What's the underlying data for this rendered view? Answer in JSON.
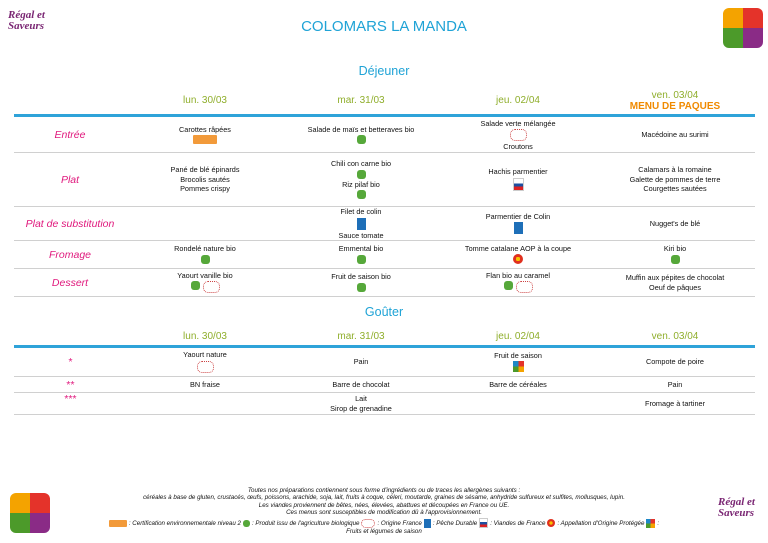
{
  "header": {
    "logo": [
      "Régal et",
      "Saveurs"
    ],
    "title": "COLOMARS LA MANDA"
  },
  "lunch": {
    "title": "Déjeuner",
    "days": [
      "lun. 30/03",
      "mar. 31/03",
      "jeu. 02/04",
      "ven. 03/04"
    ],
    "special": "MENU DE PAQUES",
    "rows": [
      {
        "label": "Entrée",
        "cells": [
          [
            "Carottes râpées"
          ],
          [
            "Salade de maïs et betteraves bio"
          ],
          [
            "Salade verte mélangée",
            "Croutons"
          ],
          [
            "Macédoine au surimi"
          ]
        ]
      },
      {
        "label": "Plat",
        "cells": [
          [
            "Pané de blé épinards",
            "Brocolis sautés",
            "Pommes crispy"
          ],
          [
            "Chili con carne bio",
            "Riz pilaf bio"
          ],
          [
            "Hachis parmentier"
          ],
          [
            "Calamars à la romaine",
            "Galette de pommes de terre",
            "Courgettes sautées"
          ]
        ]
      },
      {
        "label": "Plat de substitution",
        "cells": [
          [],
          [
            "Filet de colin",
            "Sauce tomate"
          ],
          [
            "Parmentier de Colin"
          ],
          [
            "Nugget's de blé"
          ]
        ]
      },
      {
        "label": "Fromage",
        "cells": [
          [
            "Rondelé nature bio"
          ],
          [
            "Emmental bio"
          ],
          [
            "Tomme catalane AOP à la coupe"
          ],
          [
            "Kiri bio"
          ]
        ]
      },
      {
        "label": "Dessert",
        "cells": [
          [
            "Yaourt vanille bio"
          ],
          [
            "Fruit de saison bio"
          ],
          [
            "Flan bio au caramel"
          ],
          [
            "Muffin aux pépites de chocolat",
            "Oeuf de pâques"
          ]
        ]
      }
    ]
  },
  "snack": {
    "title": "Goûter",
    "days": [
      "lun. 30/03",
      "mar. 31/03",
      "jeu. 02/04",
      "ven. 03/04"
    ],
    "rows": [
      {
        "label": "*",
        "cells": [
          [
            "Yaourt nature"
          ],
          [
            "Pain"
          ],
          [
            "Fruit de saison"
          ],
          [
            "Compote de poire"
          ]
        ]
      },
      {
        "label": "**",
        "cells": [
          [
            "BN fraise"
          ],
          [
            "Barre de chocolat"
          ],
          [
            "Barre de céréales"
          ],
          [
            "Pain"
          ]
        ]
      },
      {
        "label": "***",
        "cells": [
          [],
          [
            "Lait",
            "Sirop de grenadine"
          ],
          [],
          [
            "Fromage à tartiner"
          ]
        ]
      }
    ]
  },
  "footer": {
    "lines": [
      "Toutes nos préparations contiennent sous forme d'ingrédients ou de traces les allergènes suivants :",
      "céréales à base de gluten, crustacés, œufs, poissons, arachide, soja, lait, fruits à coque, céleri, moutarde, graines de sésame, anhydride sulfureux et sulfites, mollusques, lupin.",
      "Les viandes proviennent de bêtes, nées, élevées, abattues et découpées en France ou UE.",
      "Ces menus sont susceptibles de modification dû à l'approvisionnement."
    ],
    "legend": [
      ": Certification environnementale niveau 2",
      ": Produit issu de l'agriculture biologique",
      ": Origine France",
      ": Pêche Durable",
      ": Viandes de France",
      ": Appellation d'Origine Protégée",
      ":"
    ],
    "legend_last": "Fruits et légumes de saison"
  }
}
